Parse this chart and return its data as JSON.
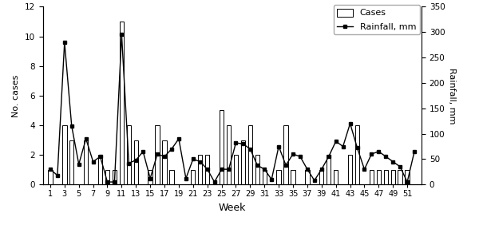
{
  "weeks": [
    1,
    2,
    3,
    4,
    5,
    6,
    7,
    8,
    9,
    10,
    11,
    12,
    13,
    14,
    15,
    16,
    17,
    18,
    19,
    20,
    21,
    22,
    23,
    24,
    25,
    26,
    27,
    28,
    29,
    30,
    31,
    32,
    33,
    34,
    35,
    36,
    37,
    38,
    39,
    40,
    41,
    42,
    43,
    44,
    45,
    46,
    47,
    48,
    49,
    50,
    51,
    52
  ],
  "cases": [
    1,
    0,
    4,
    3,
    0,
    3,
    0,
    2,
    1,
    1,
    11,
    4,
    3,
    0,
    1,
    4,
    3,
    1,
    0,
    0,
    1,
    2,
    2,
    0,
    5,
    4,
    2,
    3,
    4,
    2,
    1,
    0,
    1,
    4,
    1,
    0,
    1,
    0,
    1,
    2,
    1,
    0,
    2,
    4,
    0,
    1,
    1,
    1,
    1,
    1,
    1,
    0
  ],
  "rainfall": [
    30,
    18,
    280,
    115,
    40,
    90,
    45,
    55,
    5,
    5,
    295,
    42,
    48,
    65,
    12,
    60,
    55,
    70,
    90,
    12,
    50,
    45,
    30,
    5,
    30,
    30,
    82,
    80,
    70,
    38,
    30,
    10,
    75,
    38,
    60,
    55,
    30,
    8,
    30,
    55,
    85,
    75,
    120,
    72,
    30,
    60,
    65,
    55,
    45,
    35,
    5,
    65
  ],
  "ylabel_left": "No. cases",
  "ylabel_right": "Rainfall, mm",
  "xlabel": "Week",
  "ylim_left": [
    0,
    12
  ],
  "ylim_right": [
    0,
    350
  ],
  "yticks_left": [
    0,
    2,
    4,
    6,
    8,
    10,
    12
  ],
  "yticks_right": [
    0,
    50,
    100,
    150,
    200,
    250,
    300,
    350
  ],
  "xticks": [
    1,
    3,
    5,
    7,
    9,
    11,
    13,
    15,
    17,
    19,
    21,
    23,
    25,
    27,
    29,
    31,
    33,
    35,
    37,
    39,
    41,
    43,
    45,
    47,
    49,
    51
  ],
  "bar_color": "#ffffff",
  "bar_edgecolor": "#000000",
  "line_color": "#000000",
  "marker": "s",
  "markersize": 3.5,
  "linewidth": 1.0,
  "legend_cases": "Cases",
  "legend_rainfall": "Rainfall, mm",
  "figsize": [
    6.0,
    2.82
  ],
  "dpi": 100,
  "bar_width": 0.6,
  "xlim": [
    0.0,
    53.0
  ]
}
